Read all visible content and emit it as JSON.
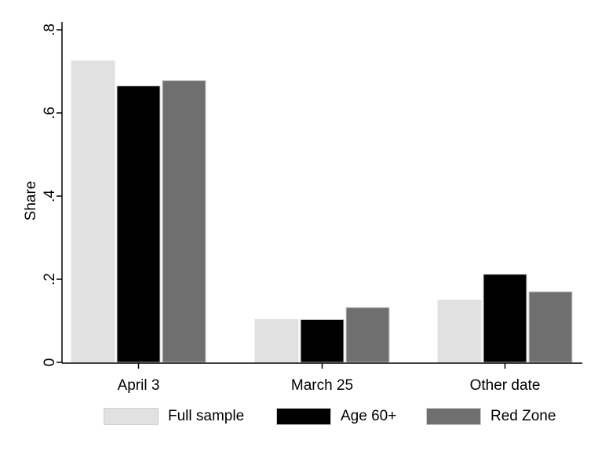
{
  "chart_data": {
    "type": "bar",
    "title": "",
    "xlabel": "",
    "ylabel": "Share",
    "ylim": [
      0,
      0.8
    ],
    "yticks": [
      0,
      0.2,
      0.4,
      0.6,
      0.8
    ],
    "ytick_labels": [
      "0",
      ".2",
      ".4",
      ".6",
      ".8"
    ],
    "grid": false,
    "legend_position": "bottom",
    "categories": [
      "April 3",
      "March 25",
      "Other date"
    ],
    "series": [
      {
        "name": "Full sample",
        "color": "#e1e1e1",
        "values": [
          0.725,
          0.103,
          0.15
        ]
      },
      {
        "name": "Age 60+",
        "color": "#000000",
        "values": [
          0.665,
          0.103,
          0.212
        ]
      },
      {
        "name": "Red Zone",
        "color": "#6f6f6f",
        "values": [
          0.678,
          0.132,
          0.17
        ]
      }
    ]
  }
}
